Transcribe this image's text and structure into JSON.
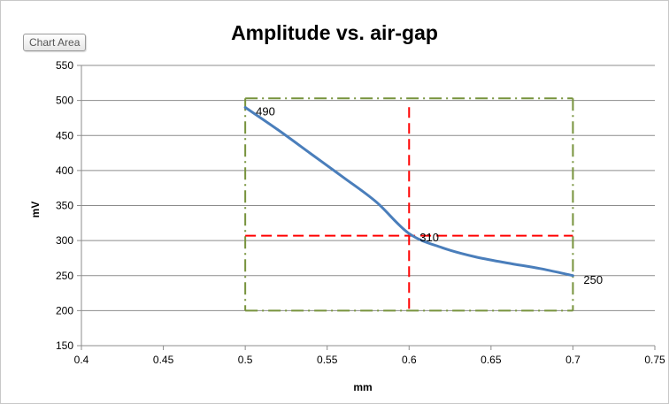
{
  "chart_area_label": "Chart Area",
  "chart_data": {
    "type": "line",
    "title": "Amplitude vs. air-gap",
    "xlabel": "mm",
    "ylabel": "mV",
    "xlim": [
      0.4,
      0.75
    ],
    "ylim": [
      150,
      550
    ],
    "xticks": [
      "0.4",
      "0.45",
      "0.5",
      "0.55",
      "0.6",
      "0.65",
      "0.7",
      "0.75"
    ],
    "yticks": [
      "150",
      "200",
      "250",
      "300",
      "350",
      "400",
      "450",
      "500",
      "550"
    ],
    "grid": "horizontal",
    "legend": "none",
    "series": [
      {
        "x": [
          0.5,
          0.52,
          0.54,
          0.56,
          0.58,
          0.6,
          0.62,
          0.64,
          0.66,
          0.68,
          0.7
        ],
        "y": [
          490,
          458,
          424,
          390,
          355,
          310,
          290,
          277,
          268,
          260,
          250
        ],
        "color": "#4a7ebb"
      }
    ],
    "data_labels": [
      {
        "x": 0.5,
        "y": 490,
        "text": "490"
      },
      {
        "x": 0.6,
        "y": 310,
        "text": "310"
      },
      {
        "x": 0.7,
        "y": 250,
        "text": "250"
      }
    ],
    "annotations": {
      "red_dashed": {
        "x": 0.6,
        "y": 307,
        "color": "#ff0000"
      },
      "green_dashdot_box": {
        "x0": 0.5,
        "x1": 0.7,
        "y0": 200,
        "y1": 503,
        "color": "#77933c"
      }
    }
  }
}
